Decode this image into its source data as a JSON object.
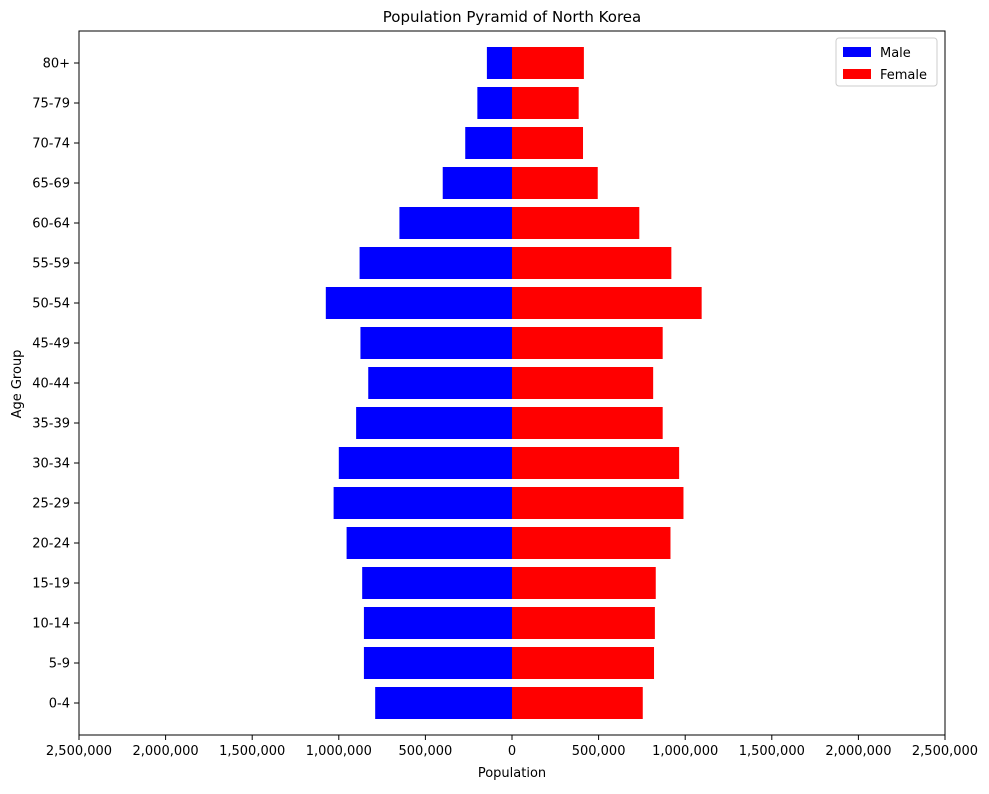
{
  "chart_data": {
    "type": "bar",
    "orientation": "horizontal",
    "title": "Population Pyramid of North Korea",
    "xlabel": "Population",
    "ylabel": "Age Group",
    "categories": [
      "0-4",
      "5-9",
      "10-14",
      "15-19",
      "20-24",
      "25-29",
      "30-34",
      "35-39",
      "40-44",
      "45-49",
      "50-54",
      "55-59",
      "60-64",
      "65-69",
      "70-74",
      "75-79",
      "80+"
    ],
    "xlim": [
      -2500000,
      2500000
    ],
    "xticks": [
      -2500000,
      -2000000,
      -1500000,
      -1000000,
      -500000,
      0,
      500000,
      1000000,
      1500000,
      2000000,
      2500000
    ],
    "xtick_labels": [
      "2,500,000",
      "2,000,000",
      "1,500,000",
      "1,000,000",
      "500,000",
      "0",
      "500,000",
      "1,000,000",
      "1,500,000",
      "2,000,000",
      "2,500,000"
    ],
    "grid": false,
    "legend_position": "top-right",
    "series": [
      {
        "name": "Male",
        "color": "#0000ff",
        "values": [
          790000,
          855000,
          855000,
          865000,
          955000,
          1030000,
          1000000,
          900000,
          830000,
          875000,
          1075000,
          880000,
          650000,
          400000,
          270000,
          200000,
          145000
        ]
      },
      {
        "name": "Female",
        "color": "#ff0000",
        "values": [
          755000,
          820000,
          825000,
          830000,
          915000,
          990000,
          965000,
          870000,
          815000,
          870000,
          1095000,
          920000,
          735000,
          495000,
          410000,
          385000,
          415000
        ]
      }
    ]
  }
}
